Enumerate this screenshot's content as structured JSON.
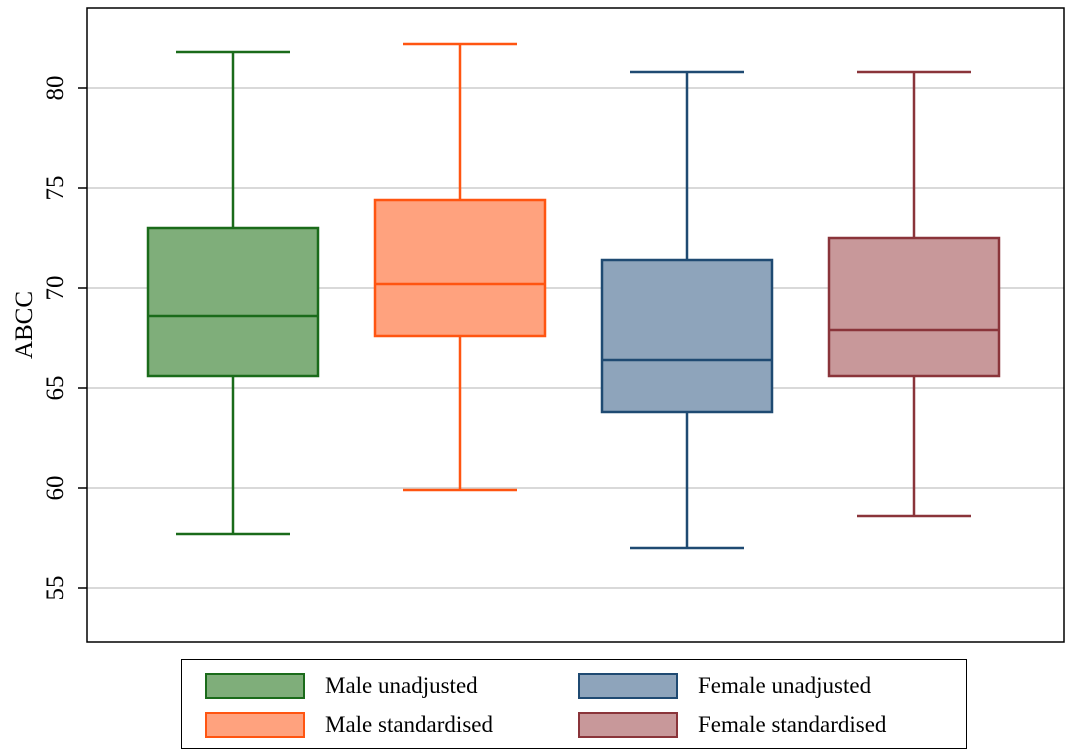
{
  "chart_data": {
    "type": "box",
    "title": "",
    "xlabel": "",
    "ylabel": "ABCC",
    "ylim": [
      52.3,
      84
    ],
    "yticks": [
      55,
      60,
      65,
      70,
      75,
      80
    ],
    "grid": true,
    "legend_position": "bottom",
    "series": [
      {
        "name": "Male unadjusted",
        "min": 57.7,
        "q1": 65.6,
        "median": 68.6,
        "q3": 73.0,
        "max": 81.8,
        "fill": "#7fae7a",
        "stroke": "#1a6b1a"
      },
      {
        "name": "Male standardised",
        "min": 59.9,
        "q1": 67.6,
        "median": 70.2,
        "q3": 74.4,
        "max": 82.2,
        "fill": "#ffa27e",
        "stroke": "#ff5511"
      },
      {
        "name": "Female unadjusted",
        "min": 57.0,
        "q1": 63.8,
        "median": 66.4,
        "q3": 71.4,
        "max": 80.8,
        "fill": "#8ea4bb",
        "stroke": "#1f4a72"
      },
      {
        "name": "Female standardised",
        "min": 58.6,
        "q1": 65.6,
        "median": 67.9,
        "q3": 72.5,
        "max": 80.8,
        "fill": "#c8989a",
        "stroke": "#8a343a"
      }
    ]
  },
  "legend": {
    "items": [
      {
        "label": "Male unadjusted",
        "fill": "#7fae7a",
        "stroke": "#1a6b1a"
      },
      {
        "label": "Female unadjusted",
        "fill": "#8ea4bb",
        "stroke": "#1f4a72"
      },
      {
        "label": "Male standardised",
        "fill": "#ffa27e",
        "stroke": "#ff5511"
      },
      {
        "label": "Female standardised",
        "fill": "#c8989a",
        "stroke": "#8a343a"
      }
    ]
  }
}
